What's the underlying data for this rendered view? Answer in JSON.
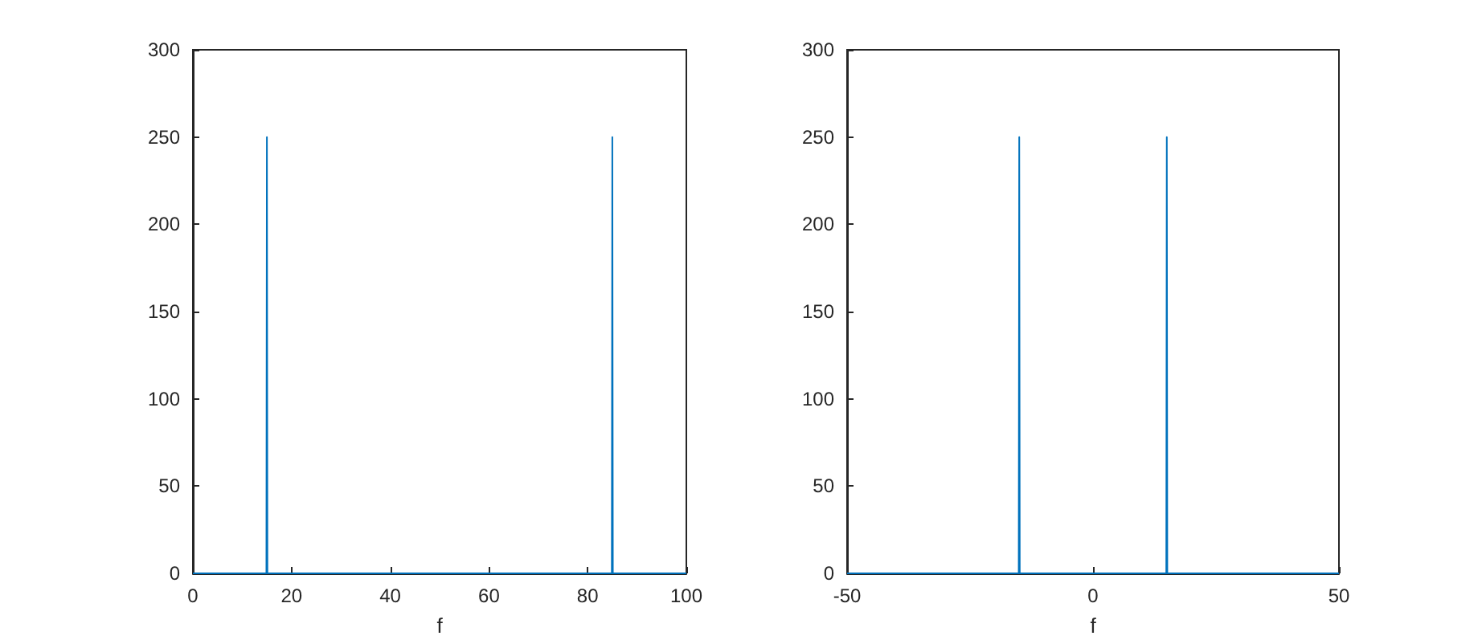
{
  "chart_data": [
    {
      "type": "line",
      "xlabel": "f",
      "x": [
        0,
        14.9,
        15,
        15.1,
        84.9,
        85,
        85.1,
        100
      ],
      "series": [
        {
          "color": "#0072bd",
          "values": [
            0,
            0,
            250,
            0,
            0,
            250,
            0,
            0
          ]
        }
      ],
      "xlim": [
        0,
        100
      ],
      "xticks": [
        0,
        20,
        40,
        60,
        80,
        100
      ],
      "ylim": [
        0,
        300
      ],
      "yticks": [
        0,
        50,
        100,
        150,
        200,
        250,
        300
      ],
      "grid": false,
      "marker": "none",
      "line_style": "solid"
    },
    {
      "type": "line",
      "xlabel": "f",
      "x": [
        -50,
        -15.1,
        -15,
        -14.9,
        14.9,
        15,
        15.1,
        50
      ],
      "series": [
        {
          "color": "#0072bd",
          "values": [
            0,
            0,
            250,
            0,
            0,
            250,
            0,
            0
          ]
        }
      ],
      "xlim": [
        -50,
        50
      ],
      "xticks": [
        -50,
        0,
        50
      ],
      "ylim": [
        0,
        300
      ],
      "yticks": [
        0,
        50,
        100,
        150,
        200,
        250,
        300
      ],
      "grid": false,
      "marker": "none",
      "line_style": "solid"
    }
  ]
}
